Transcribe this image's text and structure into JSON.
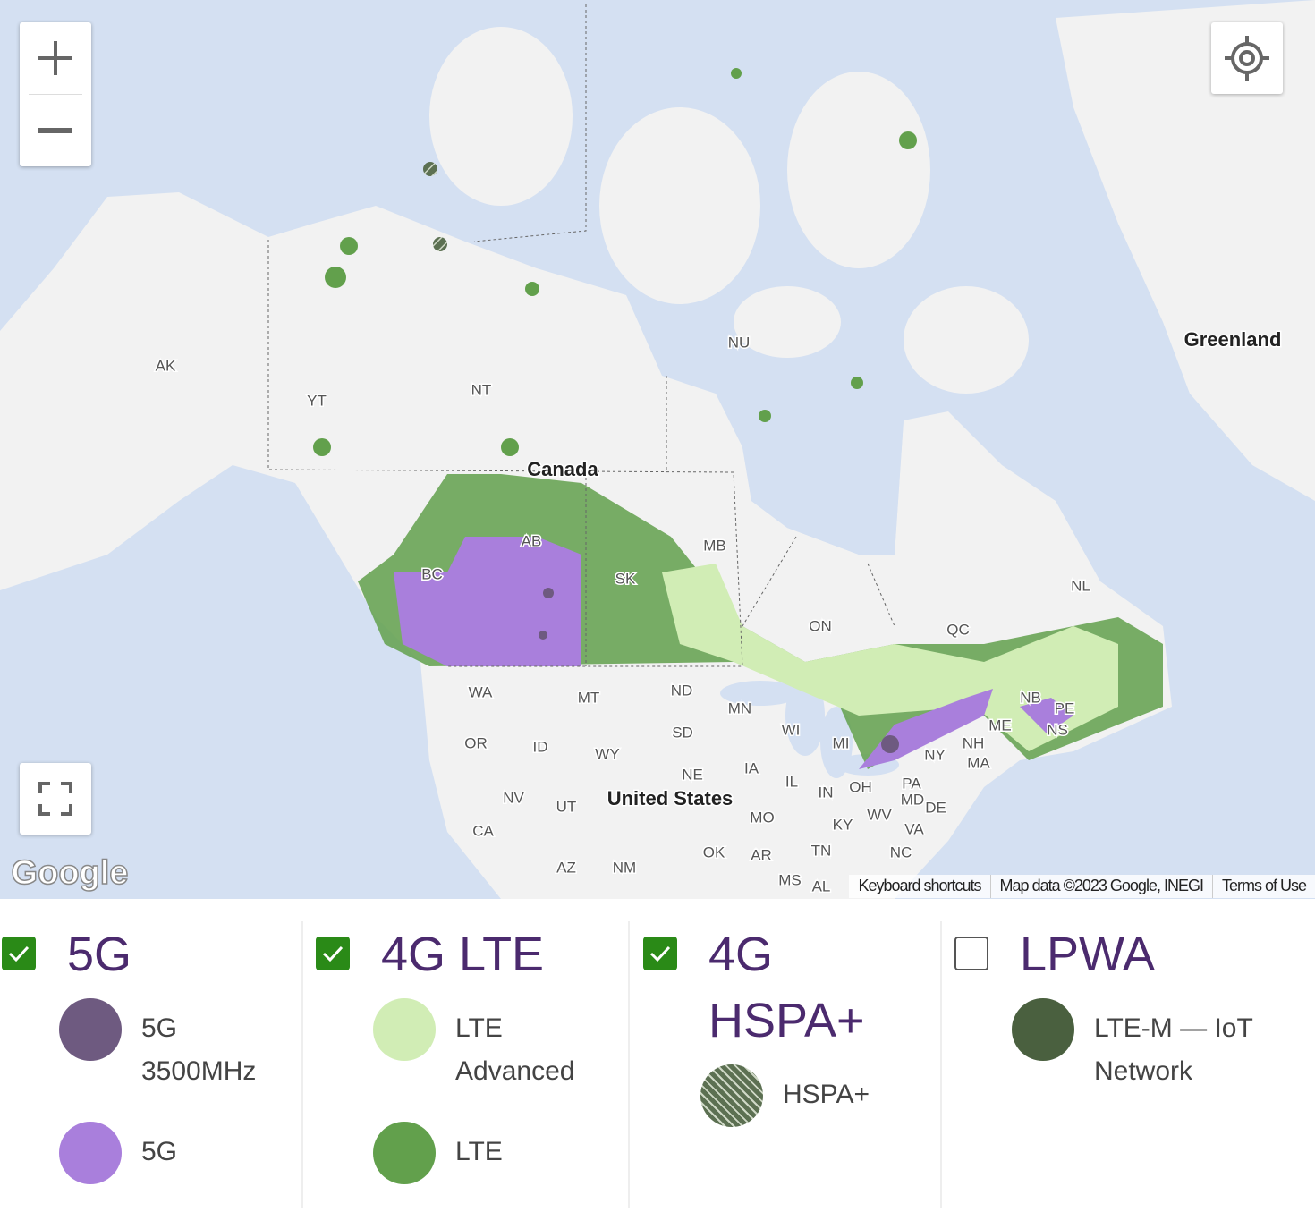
{
  "map": {
    "labels": [
      "AK",
      "YT",
      "NT",
      "NU",
      "Canada",
      "Greenland",
      "AB",
      "BC",
      "SK",
      "MB",
      "ON",
      "QC",
      "NL",
      "NB",
      "PE",
      "NS",
      "WA",
      "MT",
      "ND",
      "MN",
      "OR",
      "ID",
      "WY",
      "SD",
      "NE",
      "IA",
      "WI",
      "MI",
      "NY",
      "NH",
      "MA",
      "ME",
      "United States",
      "NV",
      "UT",
      "CA",
      "AZ",
      "NM",
      "OK",
      "AR",
      "MO",
      "IL",
      "IN",
      "OH",
      "PA",
      "MD",
      "DE",
      "KY",
      "WV",
      "VA",
      "TN",
      "NC",
      "MS",
      "AL"
    ],
    "logo": "Google",
    "attribution": {
      "keyboard": "Keyboard shortcuts",
      "data": "Map data ©2023 Google, INEGI",
      "terms": "Terms of Use"
    }
  },
  "legend": {
    "groups": [
      {
        "title": "5G",
        "checked": true,
        "items": [
          {
            "label": "5G 3500MHz",
            "color": "#6e5a80"
          },
          {
            "label": "5G",
            "color": "#a97fdc"
          }
        ]
      },
      {
        "title": "4G LTE",
        "checked": true,
        "items": [
          {
            "label": "LTE Advanced",
            "color": "#d1edb5"
          },
          {
            "label": "LTE",
            "color": "#62a04c"
          }
        ]
      },
      {
        "title": "4G HSPA+",
        "checked": true,
        "items": [
          {
            "label": "HSPA+",
            "color": "#5c7052",
            "style": "hatched"
          }
        ]
      },
      {
        "title": "LPWA",
        "checked": false,
        "items": [
          {
            "label": "LTE-M — IoT Network",
            "color": "#4a603f"
          }
        ]
      }
    ]
  }
}
